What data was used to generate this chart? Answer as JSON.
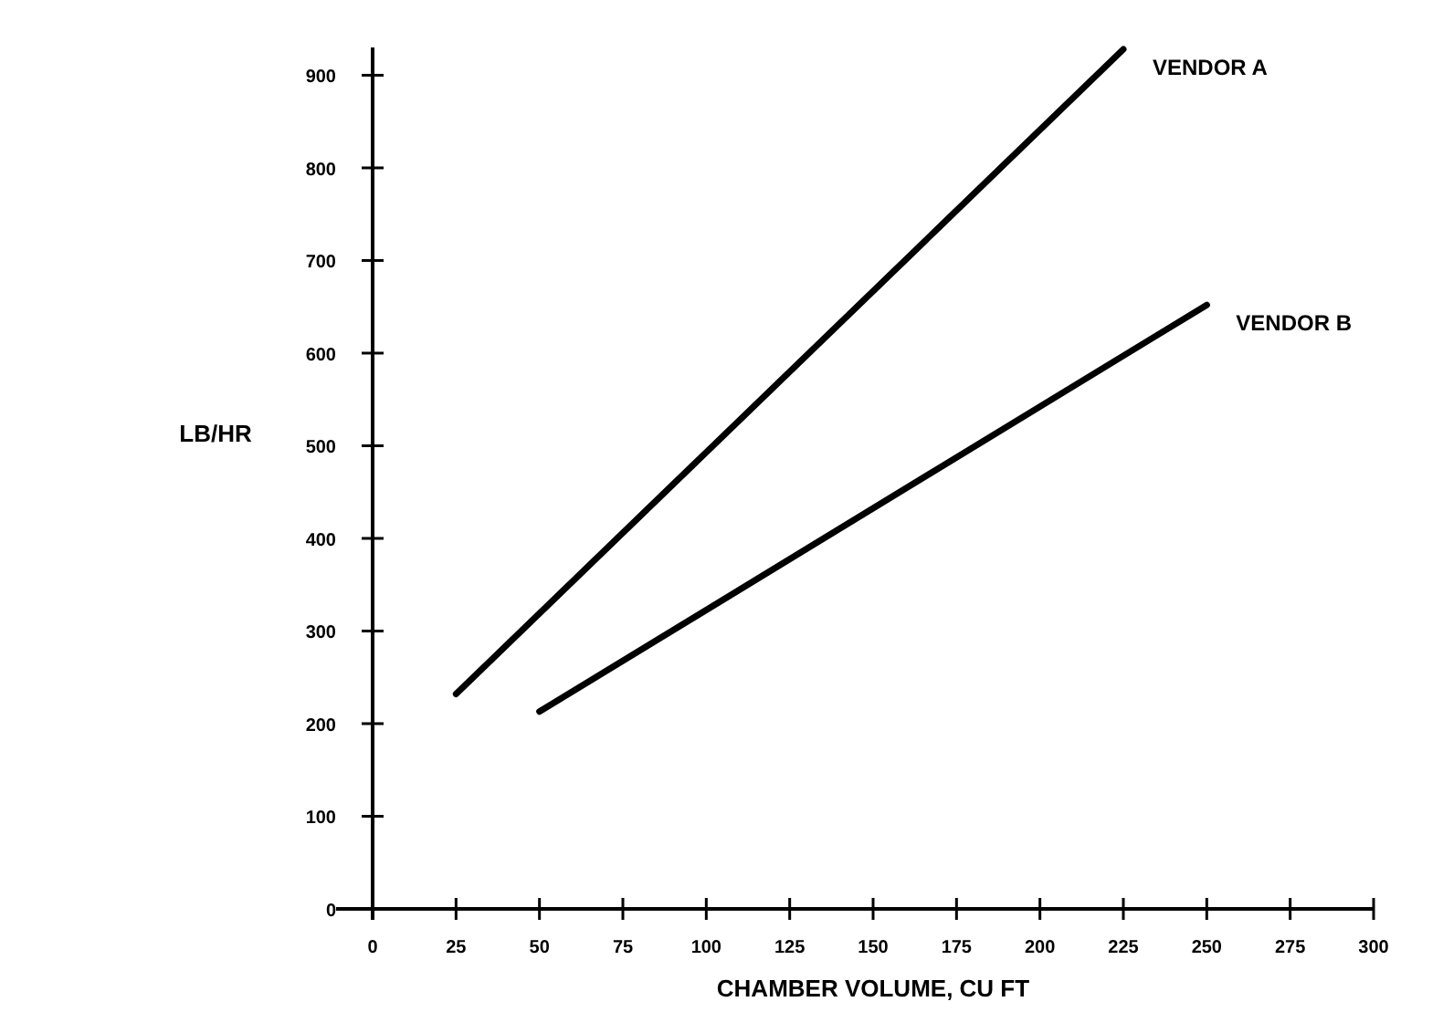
{
  "chart_data": {
    "type": "line",
    "xlabel": "CHAMBER VOLUME, CU FT",
    "ylabel": "LB/HR",
    "xlim": [
      0,
      300
    ],
    "xticks": [
      0,
      25,
      50,
      75,
      100,
      125,
      150,
      175,
      200,
      225,
      250,
      275,
      300
    ],
    "ylim": [
      0,
      930
    ],
    "yticks": [
      0,
      100,
      200,
      300,
      400,
      500,
      600,
      700,
      800,
      900
    ],
    "grid": false,
    "marker": "none",
    "line_style": "solid",
    "series": [
      {
        "name": "VENDOR A",
        "color": "#000000",
        "x": [
          25,
          225
        ],
        "values": [
          232,
          928
        ]
      },
      {
        "name": "VENDOR B",
        "color": "#000000",
        "x": [
          50,
          250
        ],
        "values": [
          213,
          652
        ]
      }
    ]
  }
}
